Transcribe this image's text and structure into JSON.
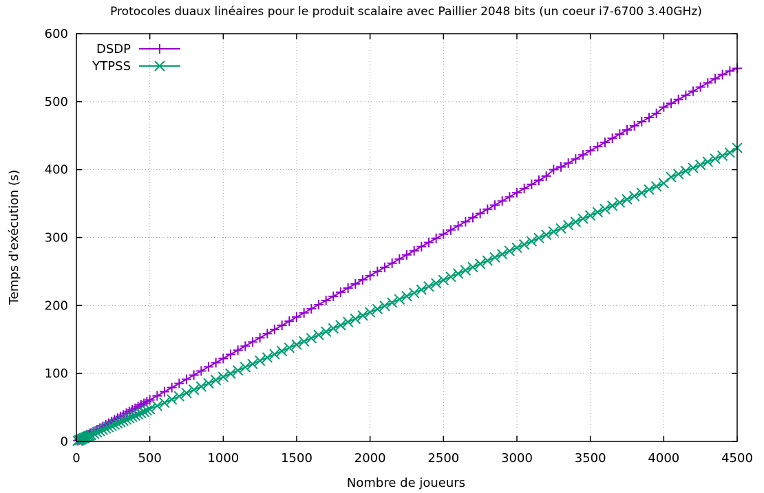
{
  "chart_data": {
    "type": "line",
    "title": "Protocoles duaux linéaires pour le produit scalaire avec Paillier 2048 bits (un coeur i7-6700 3.40GHz)",
    "xlabel": "Nombre de joueurs",
    "ylabel": "Temps d'exécution (s)",
    "xlim": [
      0,
      4500
    ],
    "ylim": [
      0,
      600
    ],
    "xticks": [
      0,
      500,
      1000,
      1500,
      2000,
      2500,
      3000,
      3500,
      4000,
      4500
    ],
    "yticks": [
      0,
      100,
      200,
      300,
      400,
      500,
      600
    ],
    "grid": true,
    "legend_position": "top-left",
    "series": [
      {
        "name": "DSDP",
        "color": "#9400d3",
        "marker": "plus-icon",
        "x": [
          10,
          20,
          30,
          40,
          50,
          60,
          70,
          80,
          90,
          100,
          120,
          140,
          160,
          180,
          200,
          220,
          240,
          260,
          280,
          300,
          320,
          340,
          360,
          380,
          400,
          420,
          440,
          460,
          480,
          500,
          550,
          600,
          650,
          700,
          750,
          800,
          850,
          900,
          950,
          1000,
          1050,
          1100,
          1150,
          1200,
          1250,
          1300,
          1350,
          1400,
          1450,
          1500,
          1550,
          1600,
          1650,
          1700,
          1750,
          1800,
          1850,
          1900,
          1950,
          2000,
          2050,
          2100,
          2150,
          2200,
          2250,
          2300,
          2350,
          2400,
          2450,
          2500,
          2550,
          2600,
          2650,
          2700,
          2750,
          2800,
          2850,
          2900,
          2950,
          3000,
          3050,
          3100,
          3150,
          3200,
          3250,
          3300,
          3350,
          3400,
          3450,
          3500,
          3550,
          3600,
          3650,
          3700,
          3750,
          3800,
          3850,
          3900,
          3950,
          4000,
          4050,
          4100,
          4150,
          4200,
          4250,
          4300,
          4350,
          4400,
          4450,
          4500
        ],
        "y": [
          1.2,
          2.4,
          3.6,
          4.8,
          6.0,
          7.3,
          8.5,
          9.7,
          11.0,
          12.2,
          14.6,
          17.1,
          19.5,
          22.0,
          24.4,
          26.8,
          29.3,
          31.7,
          34.2,
          36.6,
          39.0,
          41.5,
          43.9,
          46.4,
          48.8,
          51.2,
          53.7,
          56.1,
          58.6,
          61.0,
          67.1,
          73.2,
          79.3,
          85.4,
          91.5,
          97.6,
          103.7,
          109.8,
          115.9,
          122.0,
          128.1,
          134.2,
          140.3,
          146.4,
          152.5,
          158.6,
          164.7,
          170.8,
          176.9,
          183.0,
          189.1,
          195.2,
          201.3,
          207.4,
          213.5,
          219.6,
          225.7,
          231.8,
          237.9,
          244.0,
          250.1,
          256.2,
          262.3,
          268.4,
          274.5,
          280.6,
          286.7,
          292.8,
          298.9,
          305.0,
          311.1,
          317.2,
          323.3,
          329.4,
          335.5,
          341.6,
          347.7,
          353.8,
          359.9,
          366.0,
          372.1,
          378.2,
          384.3,
          390.4,
          400.0,
          404.0,
          409.5,
          415.6,
          421.7,
          427.8,
          433.9,
          440.0,
          446.1,
          452.2,
          458.3,
          464.4,
          470.5,
          476.6,
          482.7,
          492.0,
          497.5,
          503.2,
          509.3,
          515.4,
          521.5,
          527.6,
          533.7,
          539.8,
          545.0,
          549.0
        ]
      },
      {
        "name": "YTPSS",
        "color": "#009e73",
        "marker": "x-icon",
        "x": [
          10,
          20,
          30,
          40,
          50,
          60,
          70,
          80,
          90,
          100,
          120,
          140,
          160,
          180,
          200,
          220,
          240,
          260,
          280,
          300,
          320,
          340,
          360,
          380,
          400,
          420,
          440,
          460,
          480,
          500,
          550,
          600,
          650,
          700,
          750,
          800,
          850,
          900,
          950,
          1000,
          1050,
          1100,
          1150,
          1200,
          1250,
          1300,
          1350,
          1400,
          1450,
          1500,
          1550,
          1600,
          1650,
          1700,
          1750,
          1800,
          1850,
          1900,
          1950,
          2000,
          2050,
          2100,
          2150,
          2200,
          2250,
          2300,
          2350,
          2400,
          2450,
          2500,
          2550,
          2600,
          2650,
          2700,
          2750,
          2800,
          2850,
          2900,
          2950,
          3000,
          3050,
          3100,
          3150,
          3200,
          3250,
          3300,
          3350,
          3400,
          3450,
          3500,
          3550,
          3600,
          3650,
          3700,
          3750,
          3800,
          3850,
          3900,
          3950,
          4000,
          4050,
          4100,
          4150,
          4200,
          4250,
          4300,
          4350,
          4400,
          4450,
          4500
        ],
        "y": [
          0.9,
          1.9,
          2.8,
          3.8,
          4.7,
          5.7,
          6.6,
          7.6,
          8.5,
          9.5,
          11.4,
          13.3,
          15.2,
          17.1,
          19.0,
          20.9,
          22.8,
          24.7,
          26.6,
          28.5,
          30.4,
          32.3,
          34.2,
          36.1,
          38.0,
          39.9,
          41.8,
          43.7,
          45.6,
          47.5,
          52.3,
          57.0,
          61.8,
          66.5,
          71.3,
          76.0,
          80.8,
          85.5,
          90.3,
          95.0,
          99.8,
          104.5,
          109.3,
          114.0,
          118.8,
          123.5,
          128.3,
          133.0,
          137.8,
          142.5,
          147.3,
          152.0,
          156.8,
          161.5,
          166.3,
          171.0,
          175.8,
          180.5,
          185.3,
          190.0,
          194.8,
          199.5,
          204.3,
          209.0,
          213.8,
          218.5,
          223.3,
          228.0,
          232.8,
          237.5,
          242.3,
          247.0,
          251.8,
          256.5,
          261.3,
          266.0,
          270.8,
          275.5,
          280.3,
          285.0,
          289.8,
          294.5,
          299.3,
          304.0,
          308.8,
          313.5,
          318.3,
          323.0,
          327.8,
          332.5,
          337.3,
          342.0,
          346.8,
          351.5,
          356.3,
          361.0,
          365.8,
          370.5,
          375.3,
          380.0,
          389.0,
          393.5,
          398.0,
          402.5,
          407.0,
          411.5,
          416.0,
          420.5,
          425.0,
          432.0
        ]
      }
    ]
  }
}
